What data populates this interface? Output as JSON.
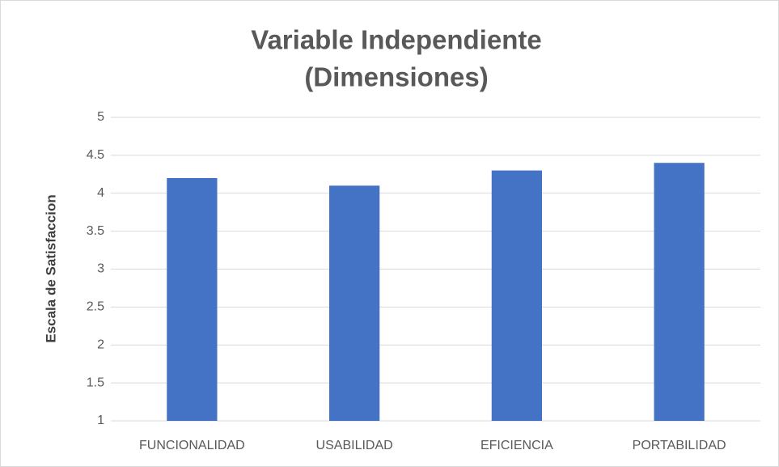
{
  "chart_data": {
    "type": "bar",
    "title": [
      "Variable Independiente",
      "(Dimensiones)"
    ],
    "y_label": "Escala de Satisfaccion",
    "categories": [
      "FUNCIONALIDAD",
      "USABILIDAD",
      "EFICIENCIA",
      "PORTABILIDAD"
    ],
    "values": [
      4.2,
      4.1,
      4.3,
      4.4
    ],
    "color": "#4472c4",
    "ylim": [
      1,
      5
    ],
    "yticks": [
      1,
      1.5,
      2,
      2.5,
      3,
      3.5,
      4,
      4.5,
      5
    ],
    "grid": true
  }
}
